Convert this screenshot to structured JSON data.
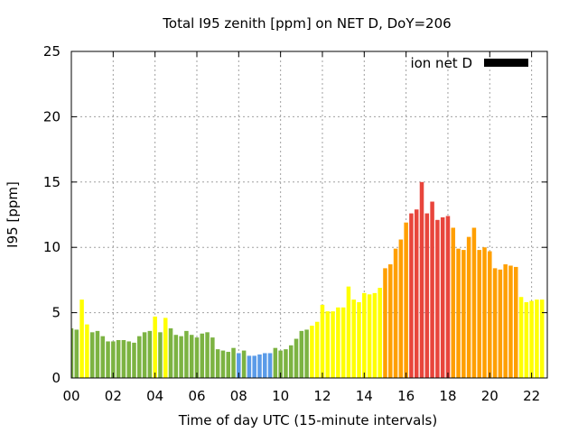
{
  "chart_data": {
    "type": "bar",
    "title": "Total I95 zenith [ppm] on NET D, DoY=206",
    "xlabel": "Time of day UTC (15-minute intervals)",
    "ylabel": "I95 [ppm]",
    "xlim": [
      0,
      22.75
    ],
    "ylim": [
      0,
      25
    ],
    "x_ticks": [
      "00",
      "02",
      "04",
      "06",
      "08",
      "10",
      "12",
      "14",
      "16",
      "18",
      "20",
      "22"
    ],
    "x_tick_values": [
      0,
      2,
      4,
      6,
      8,
      10,
      12,
      14,
      16,
      18,
      20,
      22
    ],
    "y_ticks": [
      0,
      5,
      10,
      15,
      20,
      25
    ],
    "grid": true,
    "legend_position": "top-right",
    "series": [
      {
        "name": "ion net D",
        "interval_hours": 0.25,
        "values": [
          3.8,
          3.7,
          6.0,
          4.1,
          3.5,
          3.6,
          3.2,
          2.8,
          2.8,
          2.9,
          2.9,
          2.8,
          2.7,
          3.2,
          3.5,
          3.6,
          4.7,
          3.5,
          4.6,
          3.8,
          3.3,
          3.2,
          3.6,
          3.3,
          3.1,
          3.4,
          3.5,
          3.1,
          2.2,
          2.1,
          2.0,
          2.3,
          1.9,
          2.1,
          1.7,
          1.7,
          1.8,
          1.9,
          1.9,
          2.3,
          2.1,
          2.2,
          2.5,
          3.0,
          3.6,
          3.7,
          4.0,
          4.3,
          5.6,
          5.1,
          5.1,
          5.4,
          5.4,
          7.0,
          6.0,
          5.8,
          6.5,
          6.4,
          6.5,
          6.9,
          8.4,
          8.7,
          9.9,
          10.6,
          11.9,
          12.6,
          12.9,
          15.0,
          12.6,
          13.5,
          12.1,
          12.3,
          12.4,
          11.5,
          9.9,
          9.8,
          10.8,
          11.5,
          9.8,
          10.0,
          9.7,
          8.4,
          8.3,
          8.7,
          8.6,
          8.5,
          6.2,
          5.8,
          5.9,
          6.0,
          6.0
        ]
      }
    ],
    "color_scale": {
      "green": "#7cb342",
      "blue": "#5a9be8",
      "yellow": "#ffff00",
      "orange": "#ff9f00",
      "red": "#e8453c"
    },
    "legend_color": "#000000"
  }
}
